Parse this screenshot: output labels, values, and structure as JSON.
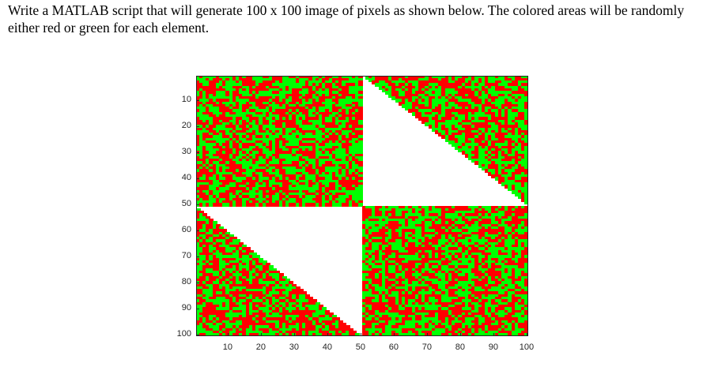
{
  "prompt": {
    "text": "Write a MATLAB script that will generate 100 x 100 image of pixels as shown below.  The colored areas will be randomly either red or green for each element."
  },
  "figure": {
    "colors": {
      "red": "#ff0000",
      "green": "#00ff00",
      "white": "#ffffff"
    },
    "grid_size": 100,
    "y_ticks": [
      "10",
      "20",
      "30",
      "40",
      "50",
      "60",
      "70",
      "80",
      "90",
      "100"
    ],
    "x_ticks": [
      "10",
      "20",
      "30",
      "40",
      "50",
      "60",
      "70",
      "80",
      "90",
      "100"
    ]
  },
  "chart_data": {
    "type": "heatmap",
    "title": "",
    "xlabel": "",
    "ylabel": "",
    "xlim": [
      0.5,
      100.5
    ],
    "ylim": [
      0.5,
      100.5
    ],
    "y_reversed": true,
    "categories": [
      "red",
      "green",
      "white"
    ],
    "regions": [
      {
        "rows": [
          1,
          50
        ],
        "cols": [
          1,
          50
        ],
        "fill": "random red/green"
      },
      {
        "rows": [
          1,
          50
        ],
        "cols": [
          51,
          100
        ],
        "fill": "random red/green below diagonal, white above"
      },
      {
        "rows": [
          51,
          100
        ],
        "cols": [
          1,
          50
        ],
        "fill": "random red/green below diagonal, white above"
      },
      {
        "rows": [
          51,
          100
        ],
        "cols": [
          51,
          100
        ],
        "fill": "random red/green"
      }
    ]
  }
}
